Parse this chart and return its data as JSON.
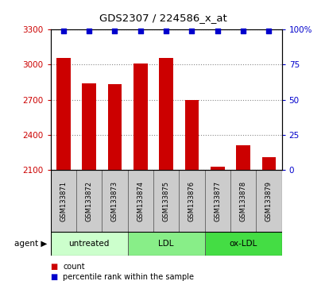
{
  "title": "GDS2307 / 224586_x_at",
  "samples": [
    "GSM133871",
    "GSM133872",
    "GSM133873",
    "GSM133874",
    "GSM133875",
    "GSM133876",
    "GSM133877",
    "GSM133878",
    "GSM133879"
  ],
  "counts": [
    3060,
    2840,
    2830,
    3010,
    3060,
    2700,
    2130,
    2310,
    2210
  ],
  "percentiles": [
    99,
    99,
    99,
    99,
    99,
    99,
    99,
    99,
    99
  ],
  "ylim_left": [
    2100,
    3300
  ],
  "ylim_right": [
    0,
    100
  ],
  "yticks_left": [
    2100,
    2400,
    2700,
    3000,
    3300
  ],
  "yticks_right": [
    0,
    25,
    50,
    75,
    100
  ],
  "bar_color": "#cc0000",
  "dot_color": "#0000cc",
  "bar_bottom": 2100,
  "groups": [
    {
      "label": "untreated",
      "start": 0,
      "end": 3,
      "color": "#ccffcc"
    },
    {
      "label": "LDL",
      "start": 3,
      "end": 6,
      "color": "#88ee88"
    },
    {
      "label": "ox-LDL",
      "start": 6,
      "end": 9,
      "color": "#44dd44"
    }
  ],
  "agent_label": "agent",
  "legend_items": [
    {
      "label": "count",
      "color": "#cc0000"
    },
    {
      "label": "percentile rank within the sample",
      "color": "#0000cc"
    }
  ],
  "grid_color": "#888888",
  "bg_color": "#ffffff",
  "sample_box_color": "#cccccc",
  "left_tick_color": "#cc0000",
  "right_tick_color": "#0000cc"
}
